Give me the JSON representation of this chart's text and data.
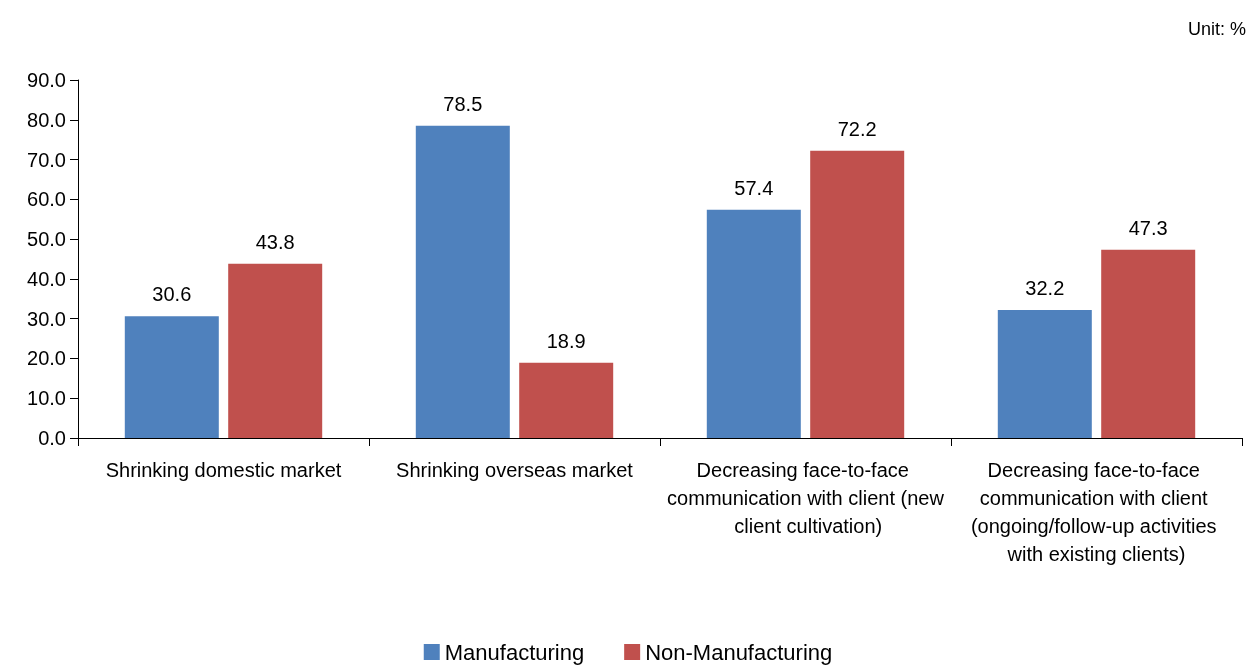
{
  "chart_data": {
    "type": "bar",
    "categories": [
      "Shrinking domestic market",
      "Shrinking overseas market",
      "Decreasing face-to-face communication with client (new client cultivation)",
      "Decreasing face-to-face communication with client (ongoing/follow-up activities with existing clients)"
    ],
    "series": [
      {
        "name": "Manufacturing",
        "color": "#4f81bd",
        "values": [
          30.6,
          78.5,
          57.4,
          32.2
        ]
      },
      {
        "name": "Non-Manufacturing",
        "color": "#c0504d",
        "values": [
          43.8,
          18.9,
          72.2,
          47.3
        ]
      }
    ],
    "ylim": [
      0,
      90
    ],
    "yticks": [
      {
        "value": 0,
        "label": "0.0"
      },
      {
        "value": 10,
        "label": "10.0"
      },
      {
        "value": 20,
        "label": "20.0"
      },
      {
        "value": 30,
        "label": "30.0"
      },
      {
        "value": 40,
        "label": "40.0"
      },
      {
        "value": 50,
        "label": "50.0"
      },
      {
        "value": 60,
        "label": "60.0"
      },
      {
        "value": 70,
        "label": "70.0"
      },
      {
        "value": 80,
        "label": "80.0"
      },
      {
        "value": 90,
        "label": "90.0"
      }
    ],
    "annotations": [
      "Unit: %"
    ],
    "data_labels": true,
    "grid": false,
    "legend": "bottom"
  }
}
